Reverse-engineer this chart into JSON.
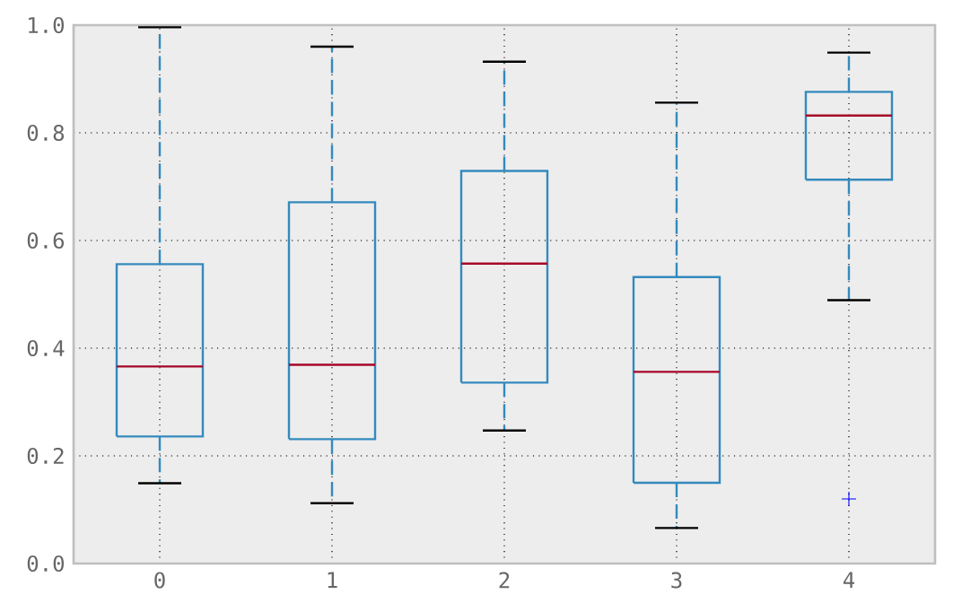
{
  "chart_data": {
    "type": "box",
    "categories": [
      "0",
      "1",
      "2",
      "3",
      "4"
    ],
    "color": "#348abd",
    "boxes": [
      {
        "low": 0.149,
        "q1": 0.236,
        "median": 0.366,
        "q3": 0.556,
        "high": 0.996
      },
      {
        "low": 0.112,
        "q1": 0.231,
        "median": 0.369,
        "q3": 0.671,
        "high": 0.96
      },
      {
        "low": 0.247,
        "q1": 0.336,
        "median": 0.557,
        "q3": 0.729,
        "high": 0.932
      },
      {
        "low": 0.066,
        "q1": 0.15,
        "median": 0.356,
        "q3": 0.532,
        "high": 0.856
      },
      {
        "low": 0.489,
        "q1": 0.713,
        "median": 0.832,
        "q3": 0.876,
        "high": 0.949,
        "outliers": [
          0.12
        ]
      }
    ],
    "ylim": [
      0.0,
      1.0
    ],
    "yticks": [
      {
        "value": 0.0,
        "label": "0.0"
      },
      {
        "value": 0.2,
        "label": "0.2"
      },
      {
        "value": 0.4,
        "label": "0.4"
      },
      {
        "value": 0.6,
        "label": "0.6"
      },
      {
        "value": 0.8,
        "label": "0.8"
      },
      {
        "value": 1.0,
        "label": "1.0"
      }
    ],
    "grid": true,
    "marker": "cross"
  }
}
